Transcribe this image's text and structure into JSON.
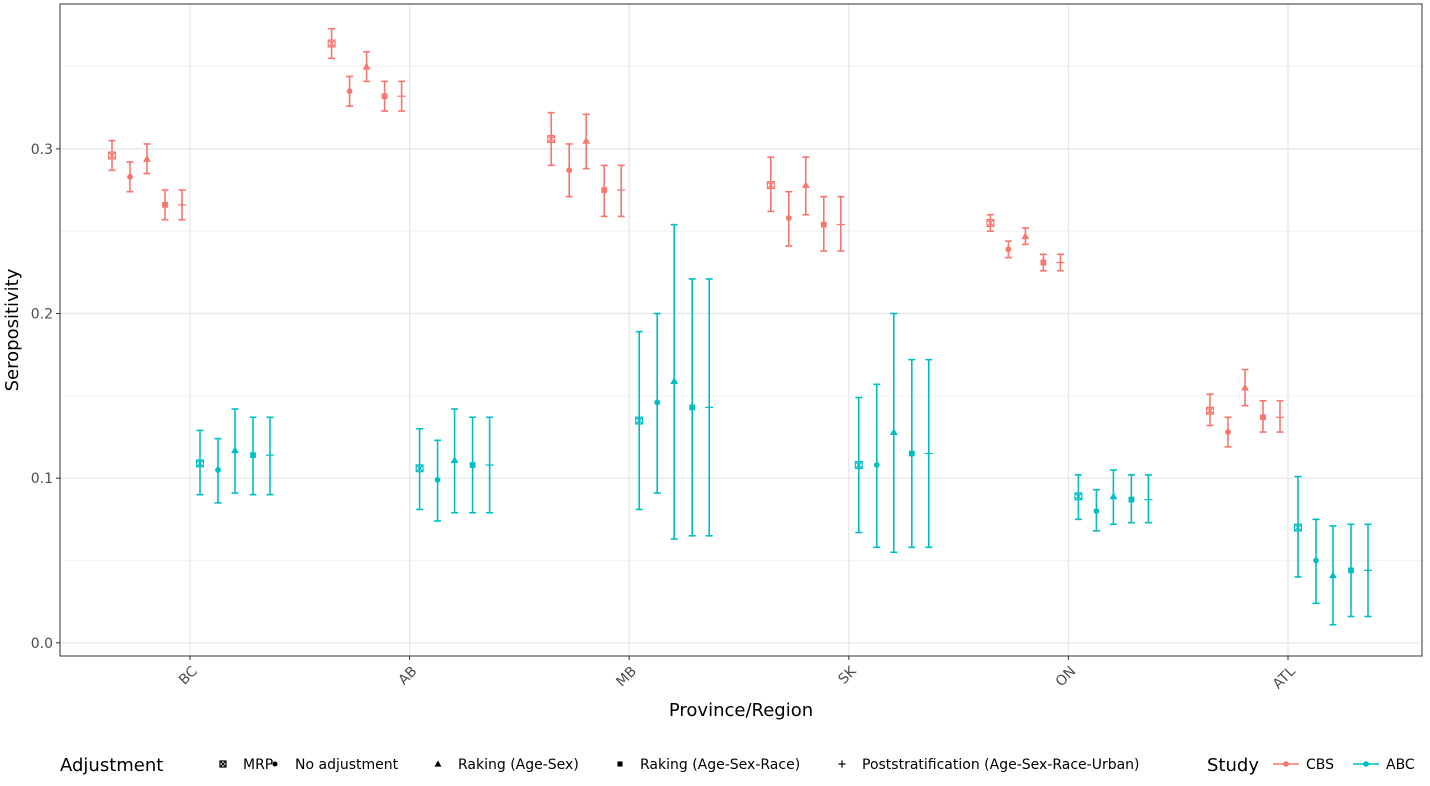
{
  "chart_data": {
    "type": "scatter",
    "subtype": "point-with-error-bars",
    "title": "",
    "xlabel": "Province/Region",
    "ylabel": "Seropositivity",
    "categories": [
      "BC",
      "AB",
      "MB",
      "SK",
      "ON",
      "ATL"
    ],
    "ylim": [
      -0.008,
      0.388
    ],
    "yticks": [
      {
        "value": 0.0,
        "label": "0.0"
      },
      {
        "value": 0.1,
        "label": "0.1"
      },
      {
        "value": 0.2,
        "label": "0.2"
      },
      {
        "value": 0.3,
        "label": "0.3"
      }
    ],
    "grid": true,
    "legend_position": "bottom",
    "adjustments": [
      {
        "key": "mrp",
        "label": "MRP",
        "shape": "boxx"
      },
      {
        "key": "none",
        "label": "No adjustment",
        "shape": "circle"
      },
      {
        "key": "rake_as",
        "label": "Raking (Age-Sex)",
        "shape": "triangle"
      },
      {
        "key": "rake_asr",
        "label": "Raking (Age-Sex-Race)",
        "shape": "square"
      },
      {
        "key": "post",
        "label": "Poststratification (Age-Sex-Race-Urban)",
        "shape": "plus"
      }
    ],
    "series": [
      {
        "name": "CBS",
        "color": "#F8766D",
        "points": [
          {
            "region": "BC",
            "adj": "mrp",
            "y": 0.296,
            "lo": 0.287,
            "hi": 0.305
          },
          {
            "region": "BC",
            "adj": "none",
            "y": 0.283,
            "lo": 0.274,
            "hi": 0.292
          },
          {
            "region": "BC",
            "adj": "rake_as",
            "y": 0.294,
            "lo": 0.285,
            "hi": 0.303
          },
          {
            "region": "BC",
            "adj": "rake_asr",
            "y": 0.266,
            "lo": 0.257,
            "hi": 0.275
          },
          {
            "region": "BC",
            "adj": "post",
            "y": 0.266,
            "lo": 0.257,
            "hi": 0.275
          },
          {
            "region": "AB",
            "adj": "mrp",
            "y": 0.364,
            "lo": 0.355,
            "hi": 0.373
          },
          {
            "region": "AB",
            "adj": "none",
            "y": 0.335,
            "lo": 0.326,
            "hi": 0.344
          },
          {
            "region": "AB",
            "adj": "rake_as",
            "y": 0.35,
            "lo": 0.341,
            "hi": 0.359
          },
          {
            "region": "AB",
            "adj": "rake_asr",
            "y": 0.332,
            "lo": 0.323,
            "hi": 0.341
          },
          {
            "region": "AB",
            "adj": "post",
            "y": 0.332,
            "lo": 0.323,
            "hi": 0.341
          },
          {
            "region": "MB",
            "adj": "mrp",
            "y": 0.306,
            "lo": 0.29,
            "hi": 0.322
          },
          {
            "region": "MB",
            "adj": "none",
            "y": 0.287,
            "lo": 0.271,
            "hi": 0.303
          },
          {
            "region": "MB",
            "adj": "rake_as",
            "y": 0.305,
            "lo": 0.288,
            "hi": 0.321
          },
          {
            "region": "MB",
            "adj": "rake_asr",
            "y": 0.275,
            "lo": 0.259,
            "hi": 0.29
          },
          {
            "region": "MB",
            "adj": "post",
            "y": 0.275,
            "lo": 0.259,
            "hi": 0.29
          },
          {
            "region": "SK",
            "adj": "mrp",
            "y": 0.278,
            "lo": 0.262,
            "hi": 0.295
          },
          {
            "region": "SK",
            "adj": "none",
            "y": 0.258,
            "lo": 0.241,
            "hi": 0.274
          },
          {
            "region": "SK",
            "adj": "rake_as",
            "y": 0.278,
            "lo": 0.26,
            "hi": 0.295
          },
          {
            "region": "SK",
            "adj": "rake_asr",
            "y": 0.254,
            "lo": 0.238,
            "hi": 0.271
          },
          {
            "region": "SK",
            "adj": "post",
            "y": 0.254,
            "lo": 0.238,
            "hi": 0.271
          },
          {
            "region": "ON",
            "adj": "mrp",
            "y": 0.255,
            "lo": 0.25,
            "hi": 0.26
          },
          {
            "region": "ON",
            "adj": "none",
            "y": 0.239,
            "lo": 0.234,
            "hi": 0.244
          },
          {
            "region": "ON",
            "adj": "rake_as",
            "y": 0.247,
            "lo": 0.242,
            "hi": 0.252
          },
          {
            "region": "ON",
            "adj": "rake_asr",
            "y": 0.231,
            "lo": 0.226,
            "hi": 0.236
          },
          {
            "region": "ON",
            "adj": "post",
            "y": 0.231,
            "lo": 0.226,
            "hi": 0.236
          },
          {
            "region": "ATL",
            "adj": "mrp",
            "y": 0.141,
            "lo": 0.132,
            "hi": 0.151
          },
          {
            "region": "ATL",
            "adj": "none",
            "y": 0.128,
            "lo": 0.119,
            "hi": 0.137
          },
          {
            "region": "ATL",
            "adj": "rake_as",
            "y": 0.155,
            "lo": 0.144,
            "hi": 0.166
          },
          {
            "region": "ATL",
            "adj": "rake_asr",
            "y": 0.137,
            "lo": 0.128,
            "hi": 0.147
          },
          {
            "region": "ATL",
            "adj": "post",
            "y": 0.137,
            "lo": 0.128,
            "hi": 0.147
          }
        ]
      },
      {
        "name": "ABC",
        "color": "#00BFC4",
        "points": [
          {
            "region": "BC",
            "adj": "mrp",
            "y": 0.109,
            "lo": 0.09,
            "hi": 0.129
          },
          {
            "region": "BC",
            "adj": "none",
            "y": 0.105,
            "lo": 0.085,
            "hi": 0.124
          },
          {
            "region": "BC",
            "adj": "rake_as",
            "y": 0.117,
            "lo": 0.091,
            "hi": 0.142
          },
          {
            "region": "BC",
            "adj": "rake_asr",
            "y": 0.114,
            "lo": 0.09,
            "hi": 0.137
          },
          {
            "region": "BC",
            "adj": "post",
            "y": 0.114,
            "lo": 0.09,
            "hi": 0.137
          },
          {
            "region": "AB",
            "adj": "mrp",
            "y": 0.106,
            "lo": 0.081,
            "hi": 0.13
          },
          {
            "region": "AB",
            "adj": "none",
            "y": 0.099,
            "lo": 0.074,
            "hi": 0.123
          },
          {
            "region": "AB",
            "adj": "rake_as",
            "y": 0.111,
            "lo": 0.079,
            "hi": 0.142
          },
          {
            "region": "AB",
            "adj": "rake_asr",
            "y": 0.108,
            "lo": 0.079,
            "hi": 0.137
          },
          {
            "region": "AB",
            "adj": "post",
            "y": 0.108,
            "lo": 0.079,
            "hi": 0.137
          },
          {
            "region": "MB",
            "adj": "mrp",
            "y": 0.135,
            "lo": 0.081,
            "hi": 0.189
          },
          {
            "region": "MB",
            "adj": "none",
            "y": 0.146,
            "lo": 0.091,
            "hi": 0.2
          },
          {
            "region": "MB",
            "adj": "rake_as",
            "y": 0.159,
            "lo": 0.063,
            "hi": 0.254
          },
          {
            "region": "MB",
            "adj": "rake_asr",
            "y": 0.143,
            "lo": 0.065,
            "hi": 0.221
          },
          {
            "region": "MB",
            "adj": "post",
            "y": 0.143,
            "lo": 0.065,
            "hi": 0.221
          },
          {
            "region": "SK",
            "adj": "mrp",
            "y": 0.108,
            "lo": 0.067,
            "hi": 0.149
          },
          {
            "region": "SK",
            "adj": "none",
            "y": 0.108,
            "lo": 0.058,
            "hi": 0.157
          },
          {
            "region": "SK",
            "adj": "rake_as",
            "y": 0.128,
            "lo": 0.055,
            "hi": 0.2
          },
          {
            "region": "SK",
            "adj": "rake_asr",
            "y": 0.115,
            "lo": 0.058,
            "hi": 0.172
          },
          {
            "region": "SK",
            "adj": "post",
            "y": 0.115,
            "lo": 0.058,
            "hi": 0.172
          },
          {
            "region": "ON",
            "adj": "mrp",
            "y": 0.089,
            "lo": 0.075,
            "hi": 0.102
          },
          {
            "region": "ON",
            "adj": "none",
            "y": 0.08,
            "lo": 0.068,
            "hi": 0.093
          },
          {
            "region": "ON",
            "adj": "rake_as",
            "y": 0.089,
            "lo": 0.072,
            "hi": 0.105
          },
          {
            "region": "ON",
            "adj": "rake_asr",
            "y": 0.087,
            "lo": 0.073,
            "hi": 0.102
          },
          {
            "region": "ON",
            "adj": "post",
            "y": 0.087,
            "lo": 0.073,
            "hi": 0.102
          },
          {
            "region": "ATL",
            "adj": "mrp",
            "y": 0.07,
            "lo": 0.04,
            "hi": 0.101
          },
          {
            "region": "ATL",
            "adj": "none",
            "y": 0.05,
            "lo": 0.024,
            "hi": 0.075
          },
          {
            "region": "ATL",
            "adj": "rake_as",
            "y": 0.041,
            "lo": 0.011,
            "hi": 0.071
          },
          {
            "region": "ATL",
            "adj": "rake_asr",
            "y": 0.044,
            "lo": 0.016,
            "hi": 0.072
          },
          {
            "region": "ATL",
            "adj": "post",
            "y": 0.044,
            "lo": 0.016,
            "hi": 0.072
          }
        ]
      }
    ],
    "legend": {
      "adjustment_title": "Adjustment",
      "study_title": "Study"
    }
  }
}
